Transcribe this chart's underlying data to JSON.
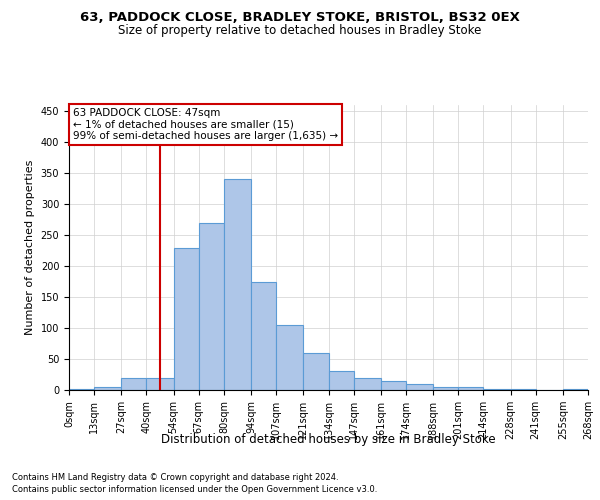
{
  "title": "63, PADDOCK CLOSE, BRADLEY STOKE, BRISTOL, BS32 0EX",
  "subtitle": "Size of property relative to detached houses in Bradley Stoke",
  "xlabel": "Distribution of detached houses by size in Bradley Stoke",
  "ylabel": "Number of detached properties",
  "footnote1": "Contains HM Land Registry data © Crown copyright and database right 2024.",
  "footnote2": "Contains public sector information licensed under the Open Government Licence v3.0.",
  "annotation_title": "63 PADDOCK CLOSE: 47sqm",
  "annotation_line1": "← 1% of detached houses are smaller (15)",
  "annotation_line2": "99% of semi-detached houses are larger (1,635) →",
  "property_size": 47,
  "bin_edges": [
    0,
    13,
    27,
    40,
    54,
    67,
    80,
    94,
    107,
    121,
    134,
    147,
    161,
    174,
    188,
    201,
    214,
    228,
    241,
    255,
    268
  ],
  "bin_counts": [
    2,
    5,
    20,
    20,
    230,
    270,
    340,
    175,
    105,
    60,
    30,
    20,
    15,
    10,
    5,
    5,
    2,
    2,
    0,
    2
  ],
  "bar_color": "#aec6e8",
  "bar_edge_color": "#5b9bd5",
  "vline_color": "#cc0000",
  "annotation_box_edgecolor": "#cc0000",
  "background_color": "#ffffff",
  "grid_color": "#d0d0d0",
  "ylim": [
    0,
    460
  ],
  "yticks": [
    0,
    50,
    100,
    150,
    200,
    250,
    300,
    350,
    400,
    450
  ],
  "title_fontsize": 9.5,
  "subtitle_fontsize": 8.5,
  "ylabel_fontsize": 8,
  "xlabel_fontsize": 8.5,
  "tick_fontsize": 7,
  "annotation_fontsize": 7.5,
  "footnote_fontsize": 6.0
}
